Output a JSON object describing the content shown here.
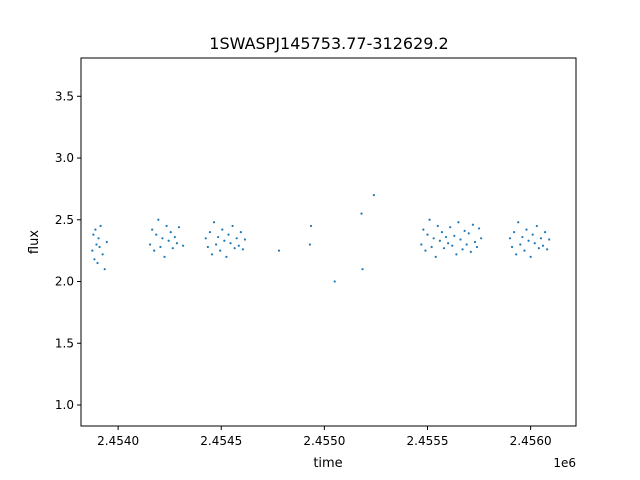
{
  "chart_data": {
    "type": "scatter",
    "title": "1SWASPJ145753.77-312629.2",
    "xlabel": "time",
    "ylabel": "flux",
    "x_offset_label": "1e6",
    "xlim": [
      2453820,
      2456220
    ],
    "ylim": [
      0.83,
      3.81
    ],
    "grid": false,
    "legend": "none",
    "marker_color": "#1f77b4",
    "x_ticks": [
      {
        "value": 2454000,
        "label": "2.4540"
      },
      {
        "value": 2454500,
        "label": "2.4545"
      },
      {
        "value": 2455000,
        "label": "2.4550"
      },
      {
        "value": 2455500,
        "label": "2.4555"
      },
      {
        "value": 2456000,
        "label": "2.4560"
      }
    ],
    "y_ticks": [
      {
        "value": 1.0,
        "label": "1.0"
      },
      {
        "value": 1.5,
        "label": "1.5"
      },
      {
        "value": 2.0,
        "label": "2.0"
      },
      {
        "value": 2.5,
        "label": "2.5"
      },
      {
        "value": 3.0,
        "label": "3.0"
      },
      {
        "value": 3.5,
        "label": "3.5"
      }
    ],
    "series": [
      {
        "x": [
          2453875,
          2453880,
          2453885,
          2453890,
          2453895,
          2453900,
          2453905,
          2453910,
          2453915,
          2453925,
          2453935,
          2453945,
          2454155,
          2454165,
          2454175,
          2454185,
          2454195,
          2454205,
          2454215,
          2454225,
          2454235,
          2454245,
          2454255,
          2454265,
          2454275,
          2454285,
          2454295,
          2454315,
          2454425,
          2454435,
          2454445,
          2454455,
          2454465,
          2454475,
          2454485,
          2454495,
          2454505,
          2454515,
          2454525,
          2454535,
          2454545,
          2454555,
          2454565,
          2454575,
          2454585,
          2454595,
          2454605,
          2454615,
          2454780,
          2454930,
          2454935,
          2455050,
          2455180,
          2455185,
          2455240,
          2455470,
          2455480,
          2455490,
          2455500,
          2455510,
          2455520,
          2455530,
          2455540,
          2455550,
          2455560,
          2455570,
          2455580,
          2455590,
          2455600,
          2455610,
          2455620,
          2455630,
          2455640,
          2455650,
          2455660,
          2455670,
          2455680,
          2455690,
          2455700,
          2455710,
          2455720,
          2455730,
          2455740,
          2455750,
          2455760,
          2455900,
          2455910,
          2455920,
          2455930,
          2455940,
          2455950,
          2455960,
          2455970,
          2455980,
          2455990,
          2456000,
          2456010,
          2456020,
          2456030,
          2456040,
          2456050,
          2456060,
          2456070,
          2456080,
          2456090
        ],
        "y": [
          2.25,
          2.38,
          2.18,
          2.42,
          2.3,
          2.15,
          2.35,
          2.28,
          2.45,
          2.22,
          2.1,
          2.32,
          2.3,
          2.42,
          2.25,
          2.38,
          2.5,
          2.28,
          2.35,
          2.2,
          2.45,
          2.33,
          2.4,
          2.27,
          2.36,
          2.31,
          2.44,
          2.29,
          2.35,
          2.28,
          2.4,
          2.22,
          2.48,
          2.3,
          2.36,
          2.25,
          2.42,
          2.33,
          2.2,
          2.38,
          2.31,
          2.45,
          2.27,
          2.35,
          2.29,
          2.4,
          2.26,
          2.34,
          2.25,
          2.3,
          2.45,
          2.0,
          2.55,
          2.1,
          2.7,
          2.3,
          2.42,
          2.25,
          2.38,
          2.5,
          2.28,
          2.35,
          2.2,
          2.45,
          2.33,
          2.4,
          2.27,
          2.36,
          2.31,
          2.44,
          2.29,
          2.37,
          2.22,
          2.48,
          2.34,
          2.26,
          2.41,
          2.3,
          2.39,
          2.24,
          2.46,
          2.32,
          2.28,
          2.43,
          2.35,
          2.35,
          2.28,
          2.4,
          2.22,
          2.48,
          2.3,
          2.36,
          2.25,
          2.42,
          2.33,
          2.2,
          2.38,
          2.31,
          2.45,
          2.27,
          2.35,
          2.29,
          2.4,
          2.26,
          2.34
        ]
      }
    ]
  }
}
